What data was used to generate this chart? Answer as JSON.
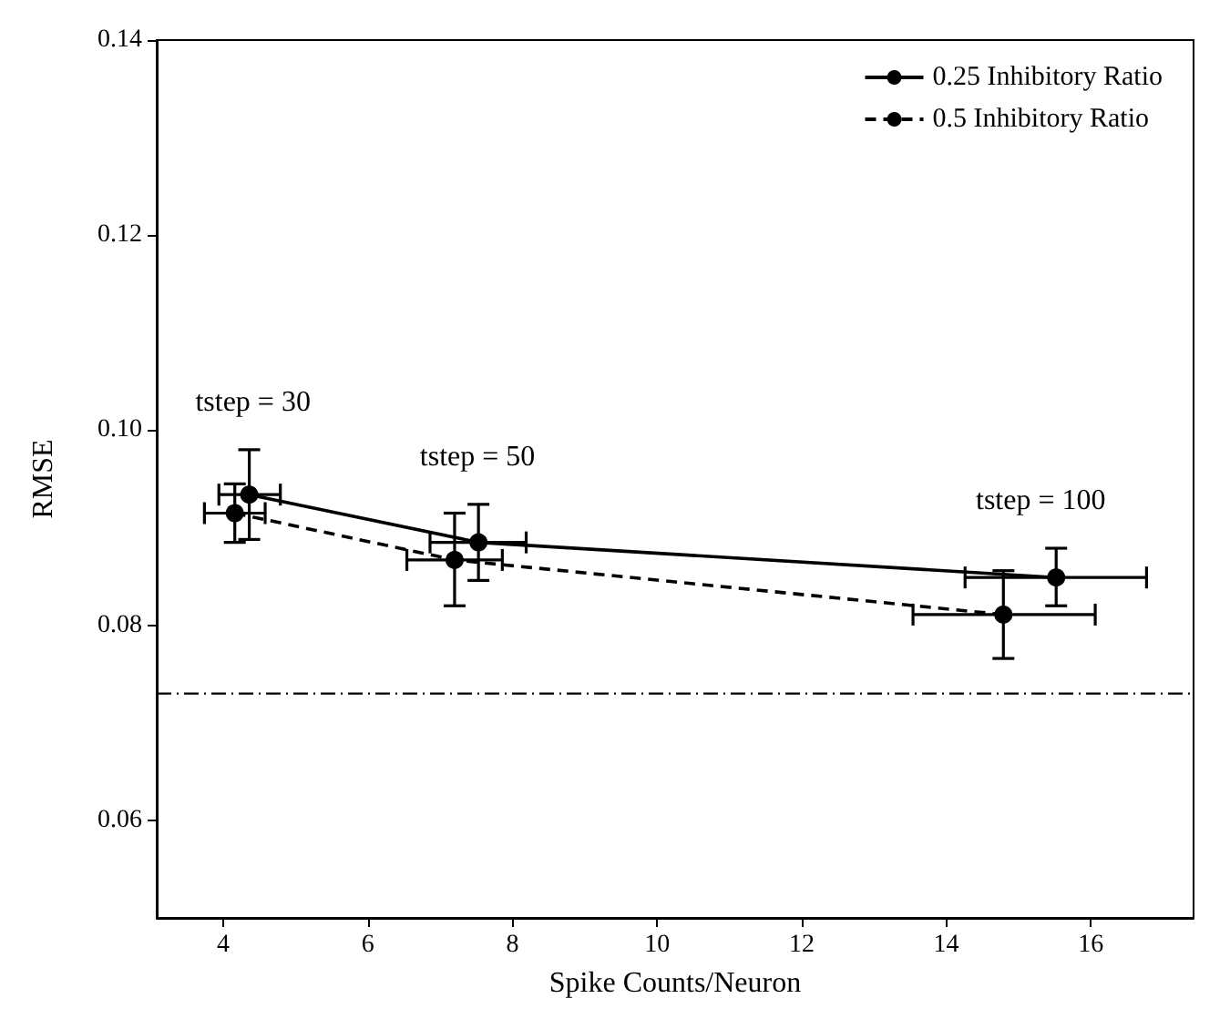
{
  "chart_data": {
    "type": "line",
    "xlabel": "Spike Counts/Neuron",
    "ylabel": "RMSE",
    "xlim": [
      3.08,
      17.42
    ],
    "xticks": [
      4,
      6,
      8,
      10,
      12,
      14,
      16
    ],
    "ylim": [
      0.05,
      0.14
    ],
    "yticks": [
      0.06,
      0.08,
      {
        "value": 0.1,
        "label": "0.10"
      },
      0.12,
      0.14
    ],
    "grid": false,
    "legend": "top right",
    "marker": "circle",
    "series": [
      {
        "name": "0.25 Inhibitory Ratio",
        "color": "#000000",
        "line_style": "solid",
        "x": [
          4.36,
          7.53,
          15.52
        ],
        "values": [
          0.0934,
          0.0885,
          0.0849
        ],
        "errors": [
          [
            0.0888,
            0.098
          ],
          [
            0.0846,
            0.0924
          ],
          [
            0.082,
            0.0879
          ]
        ],
        "xerrors": [
          [
            3.94,
            4.79
          ],
          [
            6.86,
            8.19
          ],
          [
            14.26,
            16.77
          ]
        ]
      },
      {
        "name": "0.5 Inhibitory Ratio",
        "color": "#000000",
        "line_style": "dashed",
        "x": [
          4.16,
          7.2,
          14.79
        ],
        "values": [
          0.0915,
          0.0867,
          0.0811
        ],
        "errors": [
          [
            0.0885,
            0.0945
          ],
          [
            0.082,
            0.0915
          ],
          [
            0.0766,
            0.0856
          ]
        ],
        "xerrors": [
          [
            3.74,
            4.58
          ],
          [
            6.54,
            7.86
          ],
          [
            13.54,
            16.06
          ]
        ]
      }
    ],
    "ref_lines": [
      {
        "axis": "y",
        "value": 0.073,
        "color": "#000000",
        "line_style": "dashdot"
      }
    ],
    "annotations": [
      "tstep = 30",
      "tstep = 50",
      "tstep = 100"
    ]
  }
}
